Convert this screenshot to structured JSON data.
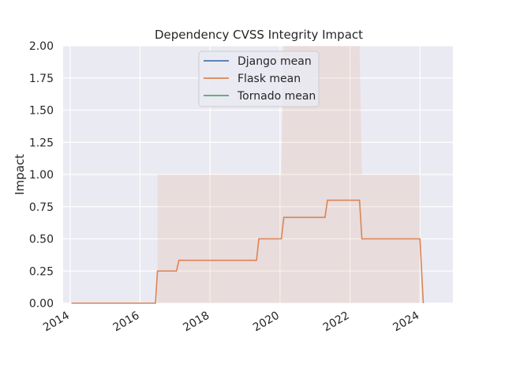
{
  "chart_data": {
    "type": "line",
    "title": "Dependency CVSS Integrity Impact",
    "xlabel": "",
    "ylabel": "Impact",
    "xlim": [
      "2013-10-20",
      "2024-12-10"
    ],
    "ylim": [
      0,
      2
    ],
    "x_ticks": [
      "2014",
      "2016",
      "2018",
      "2020",
      "2022",
      "2024"
    ],
    "y_ticks": [
      "0.00",
      "0.25",
      "0.50",
      "0.75",
      "1.00",
      "1.25",
      "1.50",
      "1.75",
      "2.00"
    ],
    "grid": true,
    "legend_position": "upper-center",
    "series": [
      {
        "name": "Django mean",
        "color": "#4c72b0",
        "points": []
      },
      {
        "name": "Flask mean",
        "color": "#dd8452",
        "points": [
          [
            "2014-01-15",
            0
          ],
          [
            "2016-06-10",
            0
          ],
          [
            "2016-07-01",
            0.25
          ],
          [
            "2017-01-15",
            0.25
          ],
          [
            "2017-02-10",
            0.333
          ],
          [
            "2019-05-01",
            0.333
          ],
          [
            "2019-05-25",
            0.5
          ],
          [
            "2020-01-15",
            0.5
          ],
          [
            "2020-02-10",
            0.667
          ],
          [
            "2021-04-15",
            0.667
          ],
          [
            "2021-05-10",
            0.8
          ],
          [
            "2022-04-10",
            0.8
          ],
          [
            "2022-05-05",
            0.5
          ],
          [
            "2024-01-01",
            0.5
          ],
          [
            "2024-02-05",
            0
          ]
        ],
        "band": [
          [
            "2016-07-01",
            0,
            1.0
          ],
          [
            "2020-01-15",
            0,
            1.0
          ],
          [
            "2020-02-10",
            0,
            2.0
          ],
          [
            "2022-04-10",
            0,
            2.0
          ],
          [
            "2022-05-05",
            0,
            1.0
          ],
          [
            "2024-01-01",
            0,
            1.0
          ]
        ]
      },
      {
        "name": "Tornado mean",
        "color": "#55a868",
        "points": []
      }
    ]
  }
}
